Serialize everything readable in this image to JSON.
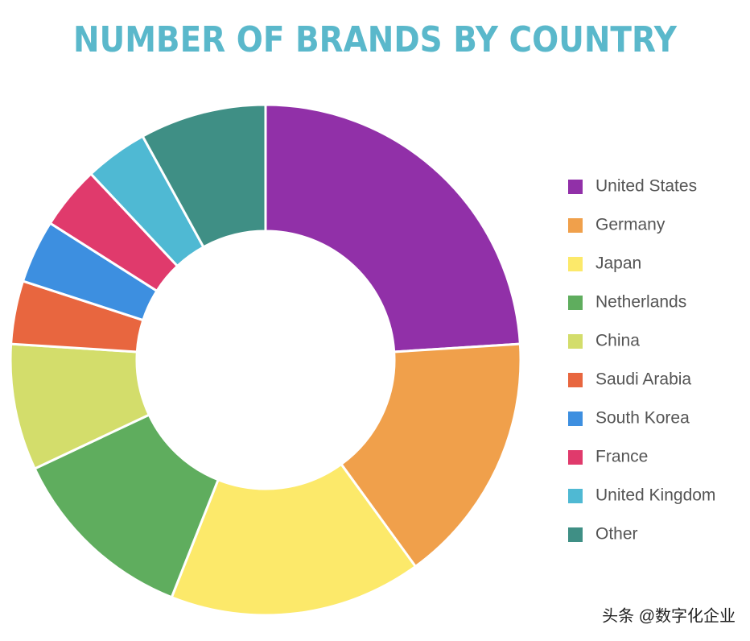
{
  "chart_data": {
    "type": "donut",
    "title": "NUMBER OF BRANDS BY COUNTRY",
    "categories": [
      "United States",
      "Germany",
      "Japan",
      "Netherlands",
      "China",
      "Saudi Arabia",
      "South Korea",
      "France",
      "United Kingdom",
      "Other"
    ],
    "values": [
      24,
      16,
      16,
      12,
      8,
      4,
      4,
      4,
      4,
      8
    ],
    "colors": [
      "#9130a8",
      "#f0a04b",
      "#fce96a",
      "#5fad5e",
      "#d3dd6b",
      "#e8663f",
      "#3d8fe0",
      "#e03a6c",
      "#4fb9d3",
      "#3f8f85"
    ],
    "legend": "right"
  },
  "watermark": "头条 @数字化企业"
}
